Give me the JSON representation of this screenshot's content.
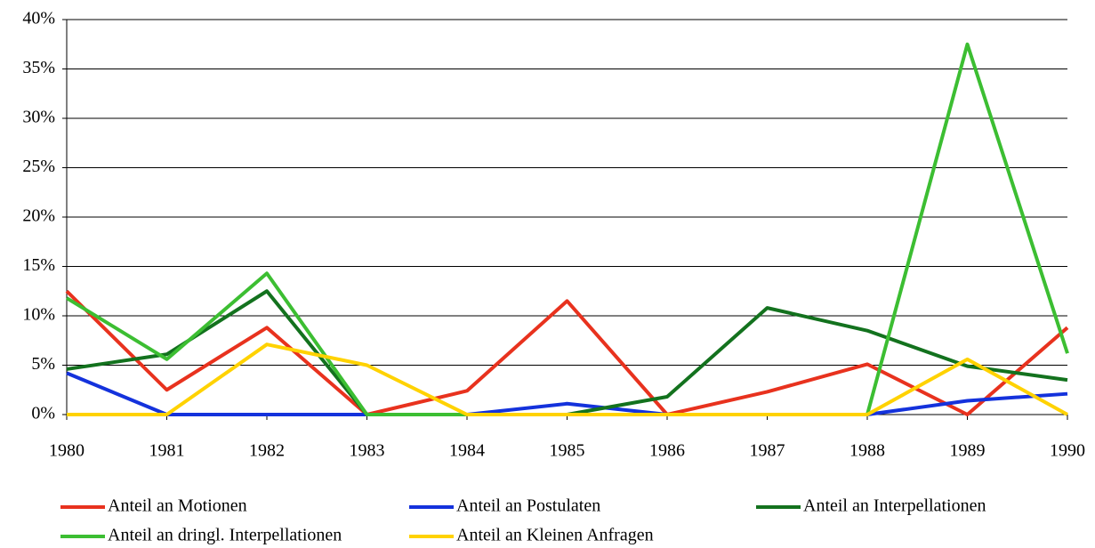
{
  "chart_data": {
    "type": "line",
    "x": [
      1980,
      1981,
      1982,
      1983,
      1984,
      1985,
      1986,
      1987,
      1988,
      1989,
      1990
    ],
    "xlim": [
      1980,
      1990
    ],
    "xticks": [
      1980,
      1981,
      1982,
      1983,
      1984,
      1985,
      1986,
      1987,
      1988,
      1989,
      1990
    ],
    "ylim": [
      0,
      40
    ],
    "yticks": [
      {
        "value": 0,
        "label": "0%"
      },
      {
        "value": 5,
        "label": "5%"
      },
      {
        "value": 10,
        "label": "10%"
      },
      {
        "value": 15,
        "label": "15%"
      },
      {
        "value": 20,
        "label": "20%"
      },
      {
        "value": 25,
        "label": "25%"
      },
      {
        "value": 30,
        "label": "30%"
      },
      {
        "value": 35,
        "label": "35%"
      },
      {
        "value": 40,
        "label": "40%"
      }
    ],
    "grid": true,
    "legend": "bottom",
    "series": [
      {
        "name": "Anteil an Motionen",
        "color": "#e8321e",
        "values": [
          12.5,
          2.5,
          8.8,
          0,
          2.4,
          11.5,
          0,
          2.3,
          5.1,
          0,
          8.8
        ]
      },
      {
        "name": "Anteil an Postulaten",
        "color": "#1432dc",
        "values": [
          4.2,
          0,
          0,
          0,
          0,
          1.1,
          0,
          0,
          0,
          1.4,
          2.1
        ]
      },
      {
        "name": "Anteil an Interpellationen",
        "color": "#13721e",
        "values": [
          4.6,
          6.1,
          12.5,
          0,
          0,
          0,
          1.8,
          10.8,
          8.5,
          4.9,
          3.5
        ]
      },
      {
        "name": "Anteil an dringl. Interpellationen",
        "color": "#3cbe32",
        "values": [
          11.8,
          5.6,
          14.3,
          0,
          0,
          0,
          0,
          0,
          0,
          37.5,
          6.2
        ]
      },
      {
        "name": "Anteil an Kleinen Anfragen",
        "color": "#ffd200",
        "values": [
          0,
          0,
          7.1,
          5.0,
          0,
          0,
          0,
          0,
          0,
          5.6,
          0
        ]
      }
    ]
  }
}
